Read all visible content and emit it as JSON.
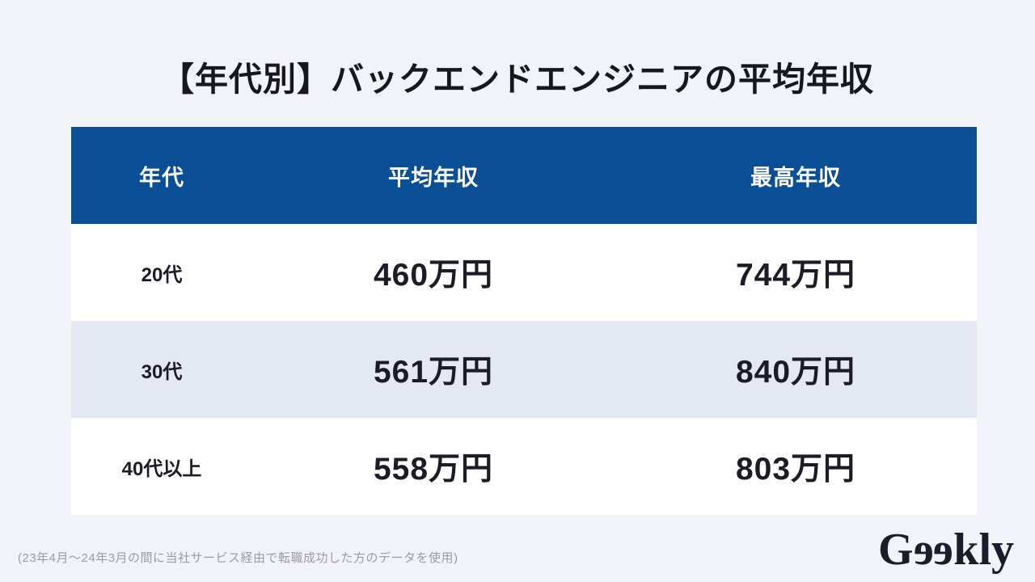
{
  "page": {
    "title": "【年代別】バックエンドエンジニアの平均年収",
    "footnote": "(23年4月〜24年3月の間に当社サービス経由で転職成功した方のデータを使用)"
  },
  "table": {
    "headers": {
      "age": "年代",
      "average": "平均年収",
      "max": "最高年収"
    },
    "rows": [
      {
        "age": "20代",
        "average": "460万円",
        "max": "744万円"
      },
      {
        "age": "30代",
        "average": "561万円",
        "max": "840万円"
      },
      {
        "age": "40代以上",
        "average": "558万円",
        "max": "803万円"
      }
    ]
  },
  "logo": {
    "g": "G",
    "e": "e",
    "kly": "kly",
    "brand": "Geekly"
  },
  "colors": {
    "page_background": "#f2f3f8",
    "header_background": "#0a4e96",
    "header_text": "#ffffff",
    "row_alt_background": "#e3e8f3",
    "row_background": "#ffffff",
    "body_text": "#1c1c26",
    "footnote_text": "#9b9ba3",
    "logo_text": "#1c1c2b"
  },
  "chart_data": {
    "type": "table",
    "title": "【年代別】バックエンドエンジニアの平均年収",
    "columns": [
      "年代",
      "平均年収",
      "最高年収"
    ],
    "rows": [
      [
        "20代",
        "460万円",
        "744万円"
      ],
      [
        "30代",
        "561万円",
        "840万円"
      ],
      [
        "40代以上",
        "558万円",
        "803万円"
      ]
    ],
    "average_income_man_yen": [
      460,
      561,
      558
    ],
    "max_income_man_yen": [
      744,
      840,
      803
    ],
    "note": "(23年4月〜24年3月の間に当社サービス経由で転職成功した方のデータを使用)"
  }
}
